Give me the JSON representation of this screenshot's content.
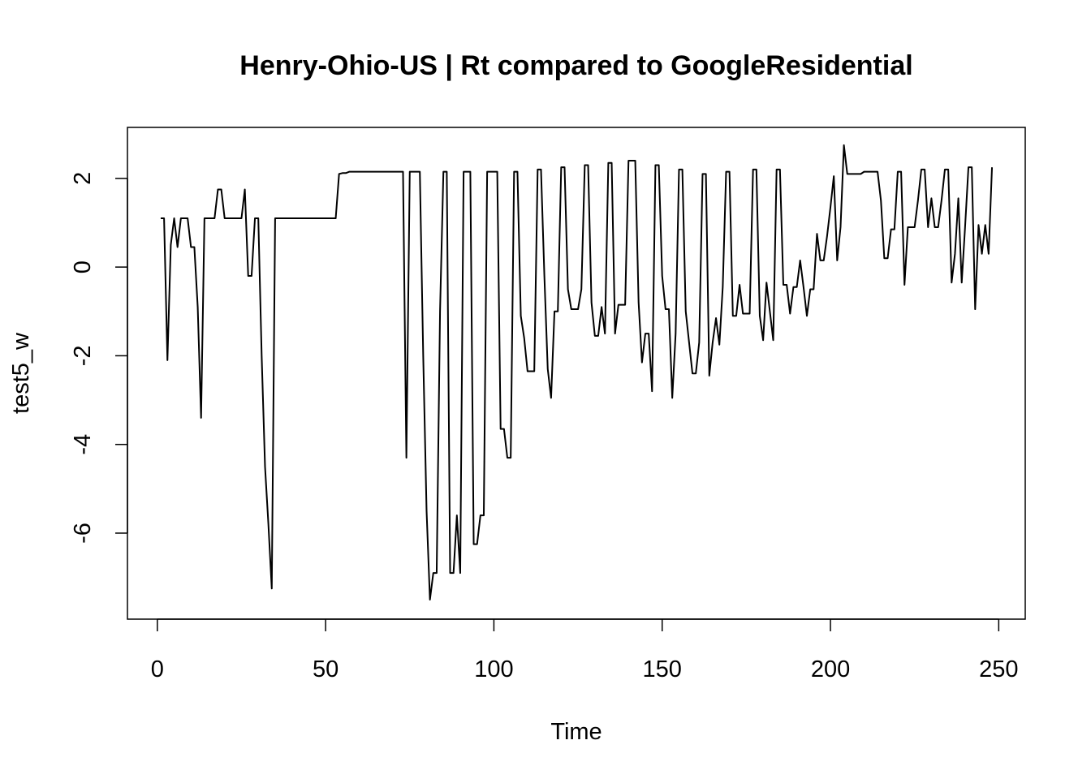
{
  "chart_data": {
    "type": "line",
    "title": "Henry-Ohio-US | Rt compared to GoogleResidential",
    "x_label": "Time",
    "y_label": "test5_w",
    "x": [
      1,
      2,
      3,
      4,
      5,
      6,
      7,
      8,
      9,
      10,
      11,
      12,
      13,
      14,
      15,
      16,
      17,
      18,
      19,
      20,
      21,
      22,
      23,
      24,
      25,
      26,
      27,
      28,
      29,
      30,
      31,
      32,
      33,
      34,
      35,
      36,
      37,
      38,
      39,
      40,
      41,
      42,
      43,
      44,
      45,
      46,
      47,
      48,
      49,
      50,
      51,
      52,
      53,
      54,
      55,
      56,
      57,
      58,
      59,
      60,
      61,
      62,
      63,
      64,
      65,
      66,
      67,
      68,
      69,
      70,
      71,
      72,
      73,
      74,
      75,
      76,
      77,
      78,
      79,
      80,
      81,
      82,
      83,
      84,
      85,
      86,
      87,
      88,
      89,
      90,
      91,
      92,
      93,
      94,
      95,
      96,
      97,
      98,
      99,
      100,
      101,
      102,
      103,
      104,
      105,
      106,
      107,
      108,
      109,
      110,
      111,
      112,
      113,
      114,
      115,
      116,
      117,
      118,
      119,
      120,
      121,
      122,
      123,
      124,
      125,
      126,
      127,
      128,
      129,
      130,
      131,
      132,
      133,
      134,
      135,
      136,
      137,
      138,
      139,
      140,
      141,
      142,
      143,
      144,
      145,
      146,
      147,
      148,
      149,
      150,
      151,
      152,
      153,
      154,
      155,
      156,
      157,
      158,
      159,
      160,
      161,
      162,
      163,
      164,
      165,
      166,
      167,
      168,
      169,
      170,
      171,
      172,
      173,
      174,
      175,
      176,
      177,
      178,
      179,
      180,
      181,
      182,
      183,
      184,
      185,
      186,
      187,
      188,
      189,
      190,
      191,
      192,
      193,
      194,
      195,
      196,
      197,
      198,
      199,
      200,
      201,
      202,
      203,
      204,
      205,
      206,
      207,
      208,
      209,
      210,
      211,
      212,
      213,
      214,
      215,
      216,
      217,
      218,
      219,
      220,
      221,
      222,
      223,
      224,
      225,
      226,
      227,
      228,
      229,
      230,
      231,
      232,
      233,
      234,
      235,
      236,
      237,
      238,
      239,
      240,
      241,
      242,
      243,
      244,
      245,
      246,
      247,
      248
    ],
    "series": [
      {
        "name": "test5_w",
        "color": "#000000",
        "values": [
          1.1,
          1.1,
          -2.1,
          0.5,
          1.1,
          0.45,
          1.1,
          1.1,
          1.1,
          0.45,
          0.45,
          -0.9,
          -3.4,
          1.1,
          1.1,
          1.1,
          1.1,
          1.75,
          1.75,
          1.1,
          1.1,
          1.1,
          1.1,
          1.1,
          1.1,
          1.75,
          -0.2,
          -0.2,
          1.1,
          1.1,
          -2,
          -4.5,
          -5.8,
          -7.25,
          1.1,
          1.1,
          1.1,
          1.1,
          1.1,
          1.1,
          1.1,
          1.1,
          1.1,
          1.1,
          1.1,
          1.1,
          1.1,
          1.1,
          1.1,
          1.1,
          1.1,
          1.1,
          1.1,
          2.1,
          2.12,
          2.12,
          2.15,
          2.15,
          2.15,
          2.15,
          2.15,
          2.15,
          2.15,
          2.15,
          2.15,
          2.15,
          2.15,
          2.15,
          2.15,
          2.15,
          2.15,
          2.15,
          2.15,
          -4.3,
          2.15,
          2.15,
          2.15,
          2.15,
          -2,
          -5.5,
          -7.5,
          -6.9,
          -6.9,
          -1,
          2.15,
          2.15,
          -6.9,
          -6.9,
          -5.6,
          -6.9,
          2.15,
          2.15,
          2.15,
          -6.25,
          -6.25,
          -5.6,
          -5.6,
          2.15,
          2.15,
          2.15,
          2.15,
          -3.65,
          -3.65,
          -4.3,
          -4.3,
          2.15,
          2.15,
          -1.1,
          -1.6,
          -2.35,
          -2.35,
          -2.35,
          2.2,
          2.2,
          -0.2,
          -2.3,
          -2.95,
          -1,
          -1,
          2.25,
          2.25,
          -0.5,
          -0.95,
          -0.95,
          -0.95,
          -0.5,
          2.3,
          2.3,
          -0.8,
          -1.55,
          -1.55,
          -0.9,
          -1.5,
          2.35,
          2.35,
          -1.5,
          -0.85,
          -0.85,
          -0.85,
          2.4,
          2.4,
          2.4,
          -0.8,
          -2.15,
          -1.5,
          -1.5,
          -2.8,
          2.3,
          2.3,
          -0.2,
          -0.95,
          -0.95,
          -2.95,
          -1.5,
          2.2,
          2.2,
          -1,
          -1.7,
          -2.4,
          -2.4,
          -1.7,
          2.1,
          2.1,
          -2.45,
          -1.7,
          -1.15,
          -1.75,
          -0.45,
          2.15,
          2.15,
          -1.1,
          -1.1,
          -0.4,
          -1.05,
          -1.05,
          -1.05,
          2.2,
          2.2,
          -1.1,
          -1.65,
          -0.35,
          -1,
          -1.65,
          2.2,
          2.2,
          -0.4,
          -0.4,
          -1.05,
          -0.45,
          -0.45,
          0.15,
          -0.45,
          -1.1,
          -0.5,
          -0.5,
          0.75,
          0.15,
          0.15,
          0.7,
          1.35,
          2.05,
          0.15,
          0.9,
          2.75,
          2.1,
          2.1,
          2.1,
          2.1,
          2.1,
          2.15,
          2.15,
          2.15,
          2.15,
          2.15,
          1.5,
          0.2,
          0.2,
          0.85,
          0.85,
          2.15,
          2.15,
          -0.4,
          0.9,
          0.9,
          0.9,
          1.5,
          2.2,
          2.2,
          0.9,
          1.55,
          0.9,
          0.9,
          1.5,
          2.2,
          2.2,
          -0.35,
          0.3,
          1.55,
          -0.35,
          0.9,
          2.25,
          2.25,
          -0.95,
          0.95,
          0.3,
          0.95,
          0.3,
          2.25
        ]
      }
    ],
    "xlim": [
      -8.88,
      257.88
    ],
    "ylim": [
      -7.94,
      3.15
    ],
    "xticks": [
      0,
      50,
      100,
      150,
      200,
      250
    ],
    "yticks": [
      -6,
      -4,
      -2,
      0,
      2
    ],
    "grid": false
  }
}
